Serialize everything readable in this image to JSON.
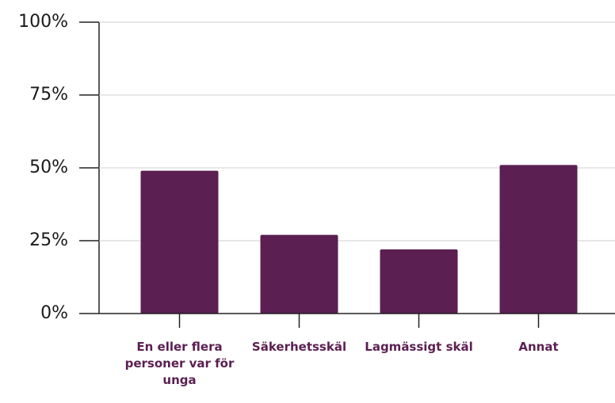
{
  "chart_data": {
    "type": "bar",
    "categories": [
      "En eller flera personer var för unga",
      "Säkerhetsskäl",
      "Lagmässigt skäl",
      "Annat"
    ],
    "values": [
      49,
      27,
      22,
      51
    ],
    "color": "#5b1f52",
    "ylim": [
      0,
      100
    ],
    "yticks": [
      {
        "value": 0,
        "label": "0%"
      },
      {
        "value": 25,
        "label": "25%"
      },
      {
        "value": 50,
        "label": "50%"
      },
      {
        "value": 75,
        "label": "75%"
      },
      {
        "value": 100,
        "label": "100%"
      }
    ],
    "grid": true
  }
}
